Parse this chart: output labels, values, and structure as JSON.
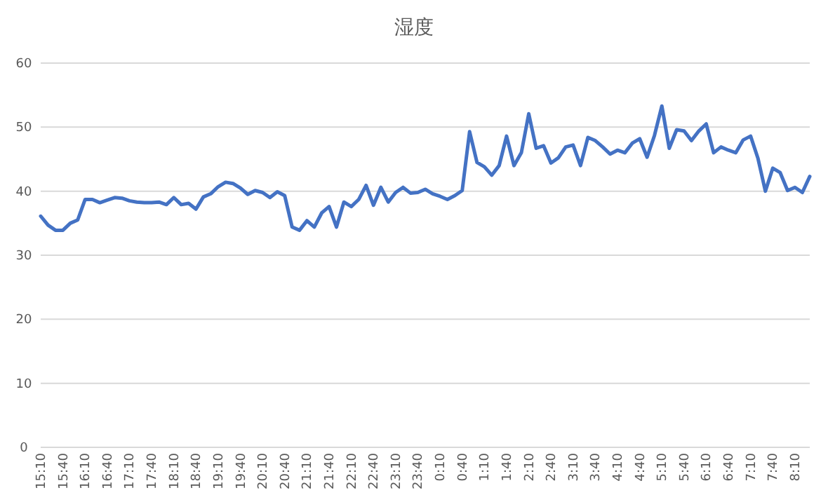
{
  "chart_data": {
    "type": "line",
    "title": "湿度",
    "categories": [
      "15:10",
      null,
      null,
      "15:40",
      null,
      null,
      "16:10",
      null,
      null,
      "16:40",
      null,
      null,
      "17:10",
      null,
      null,
      "17:40",
      null,
      null,
      "18:10",
      null,
      null,
      "18:40",
      null,
      null,
      "19:10",
      null,
      null,
      "19:40",
      null,
      null,
      "20:10",
      null,
      null,
      "20:40",
      null,
      null,
      "21:10",
      null,
      null,
      "21:40",
      null,
      null,
      "22:10",
      null,
      null,
      "22:40",
      null,
      null,
      "23:10",
      null,
      null,
      "23:40",
      null,
      null,
      "0:10",
      null,
      null,
      "0:40",
      null,
      null,
      "1:10",
      null,
      null,
      "1:40",
      null,
      null,
      "2:10",
      null,
      null,
      "2:40",
      null,
      null,
      "3:10",
      null,
      null,
      "3:40",
      null,
      null,
      "4:10",
      null,
      null,
      "4:40",
      null,
      null,
      "5:10",
      null,
      null,
      "5:40",
      null,
      null,
      "6:10",
      null,
      null,
      "6:40",
      null,
      null,
      "7:10",
      null,
      null,
      "7:40",
      null,
      null,
      "8:10",
      null,
      null
    ],
    "values": [
      36.1,
      34.7,
      33.9,
      33.9,
      35.0,
      35.5,
      38.7,
      38.7,
      38.2,
      38.6,
      39.0,
      38.9,
      38.5,
      38.3,
      38.2,
      38.2,
      38.3,
      37.9,
      39.0,
      37.9,
      38.1,
      37.2,
      39.1,
      39.6,
      40.7,
      41.4,
      41.2,
      40.5,
      39.5,
      40.1,
      39.8,
      39.0,
      39.9,
      39.3,
      34.4,
      33.9,
      35.4,
      34.4,
      36.6,
      37.6,
      34.4,
      38.3,
      37.6,
      38.7,
      40.9,
      37.8,
      40.6,
      38.3,
      39.8,
      40.6,
      39.7,
      39.8,
      40.3,
      39.6,
      39.2,
      38.7,
      39.3,
      40.1,
      49.3,
      44.5,
      43.8,
      42.5,
      44.0,
      48.6,
      44.0,
      46.0,
      52.1,
      46.7,
      47.1,
      44.4,
      45.2,
      46.9,
      47.2,
      44.0,
      48.4,
      47.9,
      46.9,
      45.8,
      46.4,
      46.0,
      47.5,
      48.2,
      45.3,
      48.7,
      53.3,
      46.7,
      49.6,
      49.4,
      47.9,
      49.4,
      50.5,
      46.0,
      46.9,
      46.4,
      46.0,
      48.0,
      48.6,
      45.1,
      40.0,
      43.6,
      42.9,
      40.1,
      40.6,
      39.8,
      42.3
    ],
    "color": "#4472c4",
    "ylim": [
      0,
      60
    ],
    "yticks": [
      0,
      10,
      20,
      30,
      40,
      50,
      60
    ],
    "grid": "y"
  }
}
